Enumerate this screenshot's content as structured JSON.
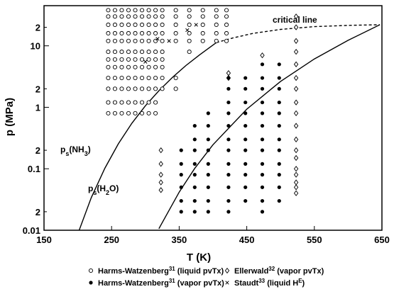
{
  "chart_data": {
    "type": "scatter",
    "ylog": true,
    "xlim": [
      150,
      650
    ],
    "ylim": [
      0.01,
      45
    ],
    "xticks": [
      150,
      250,
      350,
      450,
      550,
      650
    ],
    "yticks": [
      0.01,
      {
        "value": 0.02,
        "label": "2"
      },
      0.1,
      {
        "value": 0.2,
        "label": "2"
      },
      1,
      {
        "value": 2,
        "label": "2"
      },
      10,
      {
        "value": 20,
        "label": "2"
      }
    ],
    "xlabel": "T (K)",
    "ylabel": "p (MPa)",
    "legend": "bottom",
    "series": [
      {
        "name_parts": [
          {
            "text": "Harms-Watzenberg"
          },
          {
            "text": "31",
            "sup": true
          },
          {
            "text": " (liquid pvTx)"
          }
        ],
        "marker": "open-circle",
        "color": "#000000",
        "x": [
          245,
          245,
          245,
          245,
          245,
          245,
          245,
          245,
          245,
          245,
          245,
          245,
          255,
          255,
          255,
          255,
          255,
          255,
          255,
          255,
          255,
          255,
          255,
          255,
          265,
          265,
          265,
          265,
          265,
          265,
          265,
          265,
          265,
          265,
          265,
          265,
          275,
          275,
          275,
          275,
          275,
          275,
          275,
          275,
          275,
          275,
          275,
          275,
          285,
          285,
          285,
          285,
          285,
          285,
          285,
          285,
          285,
          285,
          285,
          285,
          295,
          295,
          295,
          295,
          295,
          295,
          295,
          295,
          295,
          295,
          295,
          295,
          305,
          305,
          305,
          305,
          305,
          305,
          305,
          305,
          305,
          305,
          305,
          305,
          315,
          315,
          315,
          315,
          315,
          315,
          315,
          315,
          315,
          315,
          315,
          315,
          325,
          325,
          325,
          325,
          325,
          325,
          325,
          325,
          325,
          325,
          345,
          345,
          345,
          345,
          345,
          345,
          345,
          365,
          365,
          365,
          365,
          365,
          365,
          385,
          385,
          385,
          385,
          385,
          405,
          405,
          405,
          405,
          405,
          420,
          420,
          420,
          420,
          420
        ],
        "values": [
          0.8,
          1.2,
          2,
          3,
          4.5,
          6,
          8,
          12,
          16,
          22,
          30,
          38,
          0.8,
          1.2,
          2,
          3,
          4.5,
          6,
          8,
          12,
          16,
          22,
          30,
          38,
          0.8,
          1.2,
          2,
          3,
          4.5,
          6,
          8,
          12,
          16,
          22,
          30,
          38,
          0.8,
          1.2,
          2,
          3,
          4.5,
          6,
          8,
          12,
          16,
          22,
          30,
          38,
          0.8,
          1.2,
          2,
          3,
          4.5,
          6,
          8,
          12,
          16,
          22,
          30,
          38,
          0.8,
          1.2,
          2,
          3,
          4.5,
          6,
          8,
          12,
          16,
          22,
          30,
          38,
          0.8,
          1.2,
          2,
          3,
          4.5,
          6,
          8,
          12,
          16,
          22,
          30,
          38,
          0.8,
          1.2,
          2,
          3,
          4.5,
          6,
          8,
          12,
          16,
          22,
          30,
          38,
          2,
          3,
          4.5,
          6,
          8,
          12,
          16,
          22,
          30,
          38,
          2,
          3,
          12,
          16,
          22,
          30,
          38,
          8,
          12,
          16,
          22,
          30,
          38,
          12,
          16,
          22,
          30,
          38,
          12,
          16,
          22,
          30,
          38,
          12,
          16,
          22,
          30,
          38
        ]
      },
      {
        "name_parts": [
          {
            "text": "Ellerwald"
          },
          {
            "text": "32",
            "sup": true
          },
          {
            "text": " (vapor pvTx)"
          }
        ],
        "marker": "open-diamond",
        "color": "#000000",
        "x": [
          323,
          323,
          323,
          323,
          323,
          423,
          423,
          473,
          523,
          523,
          523,
          523,
          523,
          523,
          523,
          523,
          523,
          523,
          523,
          523,
          523,
          523,
          523,
          523,
          523,
          523
        ],
        "values": [
          0.2,
          0.12,
          0.08,
          0.06,
          0.045,
          3,
          3.6,
          7,
          0.04,
          0.05,
          0.06,
          0.08,
          0.1,
          0.15,
          0.2,
          0.3,
          0.5,
          0.8,
          1.2,
          2,
          3,
          5,
          8,
          12,
          20,
          30
        ]
      },
      {
        "name_parts": [
          {
            "text": "Harms-Watzenberg"
          },
          {
            "text": "31",
            "sup": true
          },
          {
            "text": " (vapor pvTx)"
          }
        ],
        "marker": "filled-circle",
        "color": "#000000",
        "x": [
          353,
          353,
          353,
          353,
          353,
          353,
          373,
          373,
          373,
          373,
          373,
          373,
          373,
          373,
          393,
          393,
          393,
          393,
          393,
          393,
          393,
          393,
          393,
          423,
          423,
          423,
          423,
          423,
          423,
          423,
          423,
          423,
          423,
          423,
          423,
          448,
          448,
          448,
          448,
          448,
          448,
          448,
          448,
          448,
          448,
          448,
          473,
          473,
          473,
          473,
          473,
          473,
          473,
          473,
          473,
          473,
          473,
          473,
          473,
          498,
          498,
          498,
          498,
          498,
          498,
          498,
          498,
          498,
          498,
          498,
          498
        ],
        "values": [
          0.02,
          0.03,
          0.05,
          0.08,
          0.12,
          0.2,
          0.02,
          0.03,
          0.05,
          0.08,
          0.12,
          0.2,
          0.3,
          0.5,
          0.02,
          0.03,
          0.05,
          0.08,
          0.12,
          0.2,
          0.3,
          0.5,
          0.8,
          0.02,
          0.03,
          0.05,
          0.08,
          0.12,
          0.2,
          0.3,
          0.5,
          0.8,
          1.2,
          2,
          3,
          0.03,
          0.05,
          0.08,
          0.12,
          0.2,
          0.3,
          0.5,
          0.8,
          1.2,
          2,
          3,
          0.02,
          0.03,
          0.05,
          0.08,
          0.12,
          0.2,
          0.3,
          0.5,
          0.8,
          1.2,
          2,
          3,
          5,
          0.03,
          0.05,
          0.08,
          0.12,
          0.2,
          0.3,
          0.5,
          0.8,
          1.2,
          2,
          3,
          5
        ]
      },
      {
        "name_parts": [
          {
            "text": "Staudt"
          },
          {
            "text": "33",
            "sup": true
          },
          {
            "text": " (liquid H"
          },
          {
            "text": "E",
            "sup": true
          },
          {
            "text": ")"
          }
        ],
        "marker": "cross",
        "color": "#000000",
        "x": [
          300,
          318,
          335,
          362,
          375
        ],
        "values": [
          5.5,
          13,
          12,
          18,
          22
        ]
      }
    ],
    "lines": [
      {
        "dash": false,
        "color": "#000000",
        "x": [
          200,
          220,
          240,
          260,
          280,
          300,
          320,
          340,
          360,
          380,
          405
        ],
        "values": [
          0.0087,
          0.034,
          0.102,
          0.255,
          0.551,
          1.06,
          1.86,
          3.07,
          4.78,
          7.1,
          11.3
        ]
      },
      {
        "dash": false,
        "color": "#000000",
        "x": [
          320,
          350,
          373,
          400,
          450,
          500,
          550,
          600,
          647
        ],
        "values": [
          0.0106,
          0.0417,
          0.1013,
          0.246,
          0.932,
          2.64,
          6.12,
          12.3,
          22.06
        ]
      },
      {
        "dash": true,
        "color": "#000000",
        "x": [
          405,
          430,
          460,
          500,
          550,
          600,
          647
        ],
        "values": [
          11.3,
          13.5,
          16,
          18.5,
          20.5,
          21.5,
          22.06
        ]
      }
    ],
    "annotations": [
      {
        "parts": [
          {
            "text": "critical line"
          }
        ]
      },
      {
        "parts": [
          {
            "text": "p"
          },
          {
            "text": "s",
            "sub": true
          },
          {
            "text": "(NH"
          },
          {
            "text": "3",
            "sub": true
          },
          {
            "text": ")"
          }
        ]
      },
      {
        "parts": [
          {
            "text": "p"
          },
          {
            "text": "s",
            "sub": true
          },
          {
            "text": "(H"
          },
          {
            "text": "2",
            "sub": true
          },
          {
            "text": "O)"
          }
        ]
      }
    ]
  }
}
